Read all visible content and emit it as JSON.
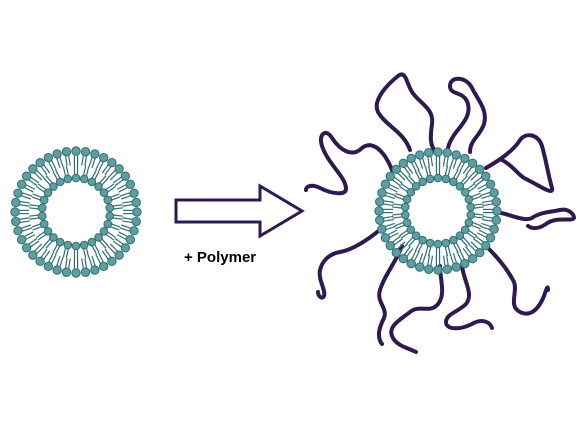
{
  "arrow_label": "+ Polymer",
  "colors": {
    "lipid_head_fill": "#5f9ea0",
    "lipid_head_stroke": "#2f6f73",
    "lipid_tail": "#2f6f73",
    "polymer": "#2e1a4f",
    "arrow_stroke": "#2e1a4f",
    "arrow_fill": "#ffffff"
  },
  "icons": {
    "bare_vesicle": "liposome-icon",
    "coated_vesicle": "polymer-coated-liposome-icon",
    "reaction_arrow": "right-arrow-icon"
  }
}
